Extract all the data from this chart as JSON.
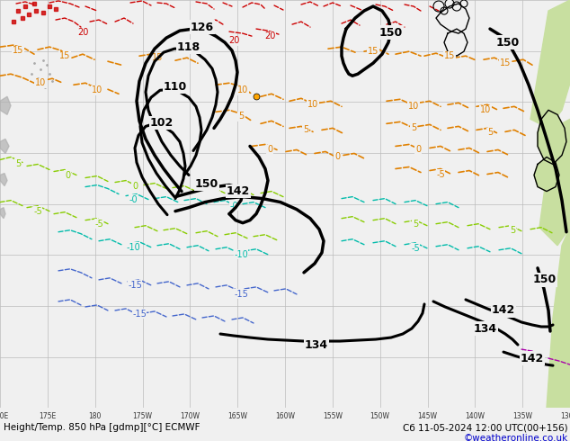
{
  "title_bottom": "Height/Temp. 850 hPa [gdmp][°C] ECMWF",
  "date_str": "Сб 11-05-2024 12:00 UTC(00+156)",
  "credit": "©weatheronline.co.uk",
  "bg_color": "#f0f0f0",
  "map_bg": "#f0f0f0",
  "grid_color": "#bbbbbb",
  "land_color_right": "#c8dfa0",
  "land_color_gray": "#b0b0b0",
  "bottom_bar_color": "#ffffff",
  "title_color": "#000000",
  "credit_color": "#0000cc",
  "figsize": [
    6.34,
    4.9
  ],
  "dpi": 100,
  "black_lw": 2.2,
  "temp_lw": 1.2,
  "red_color": "#cc0000",
  "orange_color": "#e08000",
  "green_color": "#88cc00",
  "cyan_color": "#00bbaa",
  "blue_color": "#4466cc",
  "purple_color": "#aa00aa",
  "gray_color": "#909090"
}
